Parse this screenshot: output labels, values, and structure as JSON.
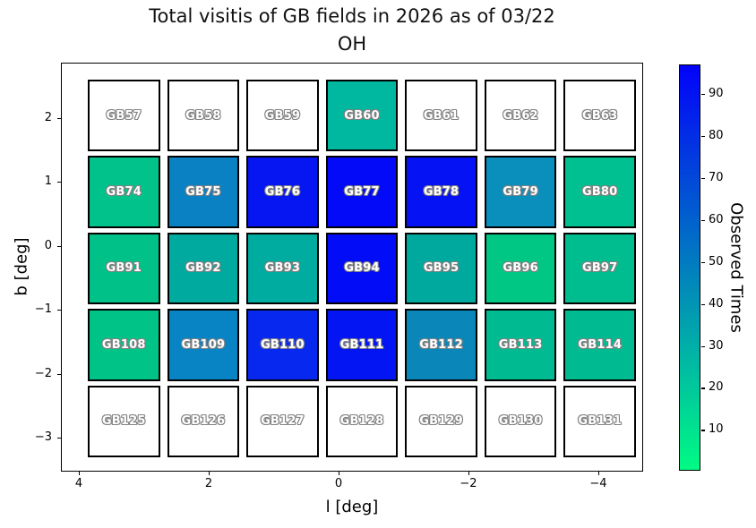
{
  "chart_data": {
    "type": "heatmap",
    "title_line1": "Total visitis of GB fields in 2026 as of 03/22",
    "title_line2": "OH",
    "xlabel": "l [deg]",
    "ylabel": "b [deg]",
    "x_ticks": [
      "4",
      "2",
      "0",
      "−2",
      "−4"
    ],
    "y_ticks": [
      "2",
      "1",
      "0",
      "−1",
      "−2",
      "−3"
    ],
    "xlim": [
      4.3,
      -4.7
    ],
    "ylim": [
      -3.55,
      2.85
    ],
    "grid_rows": 5,
    "grid_cols": 7,
    "field_names": [
      [
        "GB57",
        "GB58",
        "GB59",
        "GB60",
        "GB61",
        "GB62",
        "GB63"
      ],
      [
        "GB74",
        "GB75",
        "GB76",
        "GB77",
        "GB78",
        "GB79",
        "GB80"
      ],
      [
        "GB91",
        "GB92",
        "GB93",
        "GB94",
        "GB95",
        "GB96",
        "GB97"
      ],
      [
        "GB108",
        "GB109",
        "GB110",
        "GB111",
        "GB112",
        "GB113",
        "GB114"
      ],
      [
        "GB125",
        "GB126",
        "GB127",
        "GB128",
        "GB129",
        "GB130",
        "GB131"
      ]
    ],
    "values": [
      [
        null,
        null,
        null,
        28,
        null,
        null,
        null
      ],
      [
        24,
        48,
        88,
        95,
        90,
        43,
        25
      ],
      [
        23,
        32,
        32,
        93,
        32,
        21,
        25
      ],
      [
        22,
        47,
        82,
        89,
        45,
        26,
        26
      ],
      [
        null,
        null,
        null,
        null,
        null,
        null,
        null
      ]
    ],
    "cell_colors": [
      [
        "#ffffff",
        "#ffffff",
        "#ffffff",
        "#00b7a0",
        "#ffffff",
        "#ffffff",
        "#ffffff"
      ],
      [
        "#00c28a",
        "#0981c2",
        "#0516f2",
        "#020af8",
        "#0412f4",
        "#0a8fbc",
        "#00bf90"
      ],
      [
        "#00c188",
        "#00aa9f",
        "#00aba0",
        "#030cf7",
        "#00a99e",
        "#00c884",
        "#00bd90"
      ],
      [
        "#00c487",
        "#0884c4",
        "#0728ef",
        "#0315f3",
        "#0a87b8",
        "#00bb92",
        "#00bb92"
      ],
      [
        "#ffffff",
        "#ffffff",
        "#ffffff",
        "#ffffff",
        "#ffffff",
        "#ffffff",
        "#ffffff"
      ]
    ],
    "no_data_color": "#ffffff",
    "label_style": {
      "text_color": "#ffffff",
      "outline_color": "#828282"
    },
    "colorbar": {
      "label": "Observed Times",
      "ticks": [
        90,
        80,
        70,
        60,
        50,
        40,
        30,
        20,
        10
      ],
      "vmin": 0.5,
      "vmax": 96.8,
      "colormap": "winter_r",
      "top_color": "#0202fa",
      "bottom_color": "#00fb84"
    }
  }
}
